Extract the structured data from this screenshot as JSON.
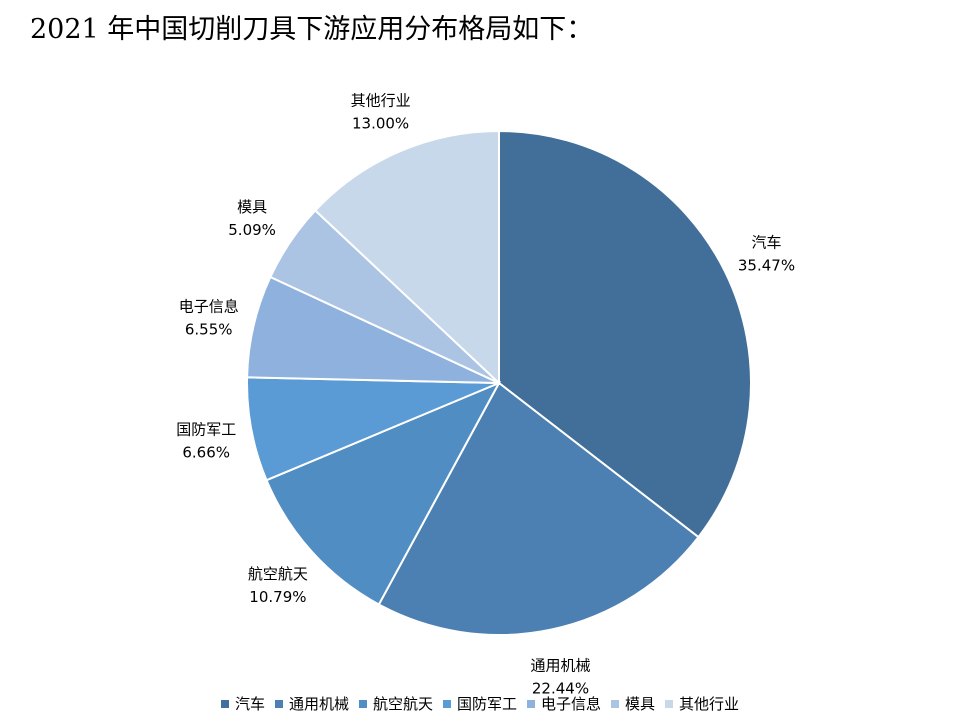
{
  "page": {
    "heading": "2021 年中国切削刀具下游应用分布格局如下："
  },
  "chart_data": {
    "type": "pie",
    "title": "",
    "legend_position": "bottom",
    "slices": [
      {
        "label": "汽车",
        "value": 35.47,
        "value_label": "35.47%",
        "color": "#416F99"
      },
      {
        "label": "通用机械",
        "value": 22.44,
        "value_label": "22.44%",
        "color": "#4C80B2"
      },
      {
        "label": "航空航天",
        "value": 10.79,
        "value_label": "10.79%",
        "color": "#508DC2"
      },
      {
        "label": "国防军工",
        "value": 6.66,
        "value_label": "6.66%",
        "color": "#5B9BD5"
      },
      {
        "label": "电子信息",
        "value": 6.55,
        "value_label": "6.55%",
        "color": "#8FB1DD"
      },
      {
        "label": "模具",
        "value": 5.09,
        "value_label": "5.09%",
        "color": "#ABC4E4"
      },
      {
        "label": "其他行业",
        "value": 13.0,
        "value_label": "13.00%",
        "color": "#C8D8EB"
      }
    ]
  }
}
